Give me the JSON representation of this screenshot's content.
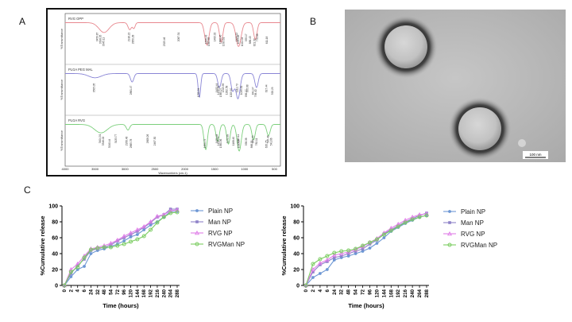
{
  "panels": {
    "a": "A",
    "b": "B",
    "c": "C"
  },
  "ftir": {
    "traces": [
      {
        "label": "RVG OPP",
        "color": "#e8888f",
        "peaks": [
          "3450.87",
          "3398.05",
          "3345.11",
          "2916.22",
          "2850.28",
          "2325.46",
          "2087.31",
          "1626.43",
          "1583.65",
          "1483.32",
          "1388.46",
          "1333.61",
          "1120.22",
          "1093.18",
          "1022.04",
          "955.17",
          "888.43",
          "821.32",
          "770.88",
          "611.18"
        ]
      },
      {
        "label": "PLGA PEG MAL",
        "color": "#8a86d6",
        "peaks": [
          "3505.05",
          "2881.47",
          "1755.54",
          "1452.44",
          "1419.61",
          "1385.27",
          "1343.55",
          "1282.58",
          "1209.10",
          "1111.73",
          "1035.61",
          "956.17",
          "935.68",
          "841.97",
          "798.40",
          "617.44",
          "520.29"
        ]
      },
      {
        "label": "PLGA RVG",
        "color": "#7ccf7c",
        "peaks": [
          "3404.91",
          "3346.02",
          "3240.44",
          "3133.77",
          "2956.48",
          "2885.78",
          "2608.26",
          "2487.50",
          "1650.79",
          "1451.48",
          "1422.71",
          "1380.56",
          "1272.89",
          "1168.40",
          "1085.84",
          "1093.11",
          "958.38",
          "866.51",
          "845.55",
          "782.11",
          "620.75",
          "595.48",
          "541.66"
        ]
      }
    ],
    "x_ticks": [
      "4000",
      "3500",
      "3000",
      "2500",
      "2000",
      "1500",
      "1000",
      "500"
    ],
    "x_label": "Wavenumbers (cm-1)",
    "y_label": "%Transmittance"
  },
  "tem": {
    "scale_label": "100 nm"
  },
  "chart_data": [
    {
      "type": "line",
      "xlabel": "Time (hours)",
      "ylabel": "%Cumulative release",
      "x": [
        "0",
        "2",
        "4",
        "6",
        "24",
        "32",
        "48",
        "54",
        "72",
        "96",
        "120",
        "144",
        "168",
        "192",
        "216",
        "240",
        "264",
        "288"
      ],
      "ylim": [
        0,
        100
      ],
      "yticks": [
        0,
        20,
        40,
        60,
        80,
        100
      ],
      "legend": "right",
      "series": [
        {
          "name": "Plain NP",
          "color": "#6d97d4",
          "marker": "circle",
          "values": [
            0,
            11,
            20,
            24,
            40,
            44,
            46,
            49,
            52,
            56,
            61,
            64,
            70,
            76,
            80,
            86,
            93,
            93
          ]
        },
        {
          "name": "Man NP",
          "color": "#8e82c8",
          "marker": "square",
          "values": [
            0,
            15,
            25,
            33,
            44,
            46,
            48,
            51,
            56,
            60,
            64,
            68,
            73,
            79,
            86,
            89,
            96,
            96
          ]
        },
        {
          "name": "RVG NP",
          "color": "#e07fe8",
          "marker": "triangle",
          "values": [
            0,
            20,
            27,
            37,
            46,
            48,
            50,
            53,
            57,
            62,
            66,
            70,
            74,
            80,
            87,
            89,
            94,
            95
          ]
        },
        {
          "name": "RVGMan NP",
          "color": "#7ccd62",
          "marker": "circle-open",
          "values": [
            0,
            17,
            23,
            35,
            45,
            47,
            48,
            48,
            50,
            52,
            55,
            58,
            62,
            70,
            79,
            86,
            91,
            92
          ]
        }
      ]
    },
    {
      "type": "line",
      "xlabel": "Time (hours)",
      "ylabel": "%Cumulative release",
      "x": [
        "0",
        "2",
        "4",
        "6",
        "24",
        "32",
        "48",
        "54",
        "72",
        "96",
        "120",
        "144",
        "168",
        "192",
        "216",
        "240",
        "264",
        "288"
      ],
      "ylim": [
        0,
        100
      ],
      "yticks": [
        0,
        20,
        40,
        60,
        80,
        100
      ],
      "legend": "right",
      "series": [
        {
          "name": "Plain NP",
          "color": "#6d97d4",
          "marker": "circle",
          "values": [
            0,
            10,
            15,
            20,
            32,
            35,
            37,
            40,
            43,
            47,
            53,
            60,
            68,
            73,
            78,
            82,
            86,
            88
          ]
        },
        {
          "name": "Man NP",
          "color": "#8e82c8",
          "marker": "square",
          "values": [
            0,
            17,
            26,
            30,
            35,
            37,
            40,
            43,
            46,
            52,
            57,
            65,
            70,
            75,
            80,
            84,
            88,
            91
          ]
        },
        {
          "name": "RVG NP",
          "color": "#e07fe8",
          "marker": "triangle",
          "values": [
            0,
            20,
            28,
            32,
            38,
            40,
            42,
            45,
            49,
            54,
            59,
            66,
            72,
            77,
            82,
            86,
            89,
            90
          ]
        },
        {
          "name": "RVGMan NP",
          "color": "#7ccd62",
          "marker": "circle-open",
          "values": [
            0,
            27,
            33,
            37,
            41,
            43,
            44,
            46,
            50,
            54,
            58,
            64,
            69,
            74,
            79,
            83,
            86,
            88
          ]
        }
      ]
    }
  ]
}
